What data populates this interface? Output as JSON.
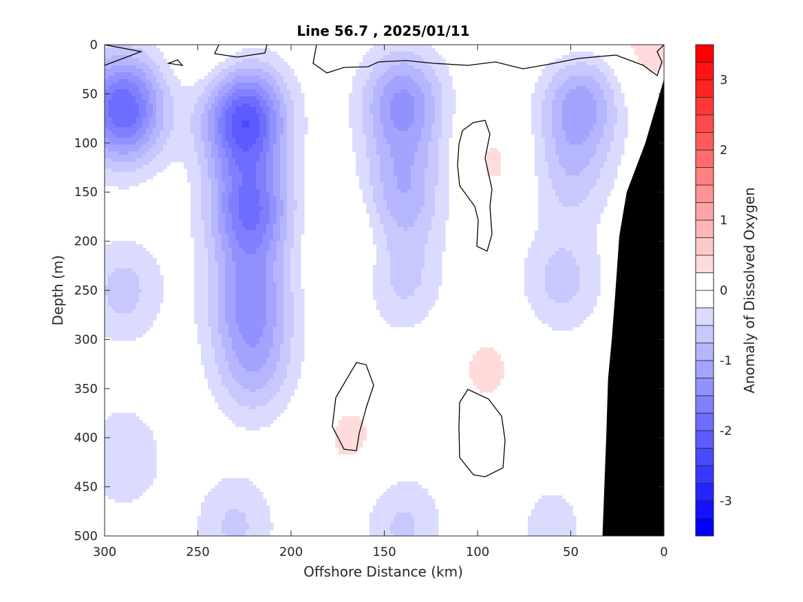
{
  "chart_data": {
    "type": "heatmap",
    "subtype": "filled-contour-section",
    "title": "Line 56.7 , 2025/01/11",
    "xlabel": "Offshore Distance (km)",
    "ylabel": "Depth (m)",
    "xlim": [
      300,
      0
    ],
    "ylim": [
      0,
      500
    ],
    "x_reversed": true,
    "y_reversed": true,
    "x_ticks": [
      300,
      250,
      200,
      150,
      100,
      50,
      0
    ],
    "y_ticks": [
      0,
      50,
      100,
      150,
      200,
      250,
      300,
      350,
      400,
      450,
      500
    ],
    "colorbar": {
      "label": "Anomaly of Dissolved Oxygen",
      "range": [
        -3.5,
        3.5
      ],
      "ticks": [
        3,
        2,
        1,
        0,
        -1,
        -2,
        -3
      ],
      "levels": [
        -3.5,
        -3.25,
        -3,
        -2.75,
        -2.5,
        -2.25,
        -2,
        -1.75,
        -1.5,
        -1.25,
        -1,
        -0.75,
        -0.5,
        -0.25,
        0,
        0.25,
        0.5,
        0.75,
        1,
        1.25,
        1.5,
        1.75,
        2,
        2.25,
        2.5,
        2.75,
        3,
        3.25,
        3.5
      ],
      "negative_color": "#0000ff",
      "positive_color": "#ff0000",
      "zero_color": "#ffffff"
    },
    "grid": false,
    "bathymetry_color": "#000000",
    "anomaly_features": [
      {
        "x": 225,
        "depth": 75,
        "value": -2.2
      },
      {
        "x": 290,
        "depth": 65,
        "value": -2.0
      },
      {
        "x": 222,
        "depth": 170,
        "value": -1.7
      },
      {
        "x": 222,
        "depth": 260,
        "value": -1.2
      },
      {
        "x": 220,
        "depth": 330,
        "value": -0.8
      },
      {
        "x": 140,
        "depth": 60,
        "value": -1.3
      },
      {
        "x": 140,
        "depth": 150,
        "value": -0.9
      },
      {
        "x": 140,
        "depth": 240,
        "value": -0.55
      },
      {
        "x": 45,
        "depth": 55,
        "value": -1.2
      },
      {
        "x": 50,
        "depth": 130,
        "value": -0.6
      },
      {
        "x": 55,
        "depth": 240,
        "value": -0.6
      },
      {
        "x": 290,
        "depth": 250,
        "value": -0.6
      },
      {
        "x": 290,
        "depth": 420,
        "value": -0.5
      },
      {
        "x": 230,
        "depth": 490,
        "value": -0.55
      },
      {
        "x": 140,
        "depth": 490,
        "value": -0.55
      },
      {
        "x": 60,
        "depth": 490,
        "value": -0.35
      },
      {
        "x": 170,
        "depth": 200,
        "value": 0.3
      },
      {
        "x": 168,
        "depth": 400,
        "value": 0.3
      },
      {
        "x": 95,
        "depth": 330,
        "value": 0.3
      },
      {
        "x": 90,
        "depth": 120,
        "value": 0.3
      },
      {
        "x": 240,
        "depth": 10,
        "value": 0.3
      },
      {
        "x": 10,
        "depth": 5,
        "value": 0.35
      },
      {
        "x": 50,
        "depth": 3,
        "value": 0.3
      }
    ],
    "bathymetry": [
      [
        0,
        35
      ],
      [
        10,
        100
      ],
      [
        20,
        150
      ],
      [
        24,
        195
      ],
      [
        26,
        250
      ],
      [
        28,
        300
      ],
      [
        30,
        340
      ],
      [
        31,
        400
      ],
      [
        32,
        450
      ],
      [
        33,
        500
      ]
    ]
  }
}
